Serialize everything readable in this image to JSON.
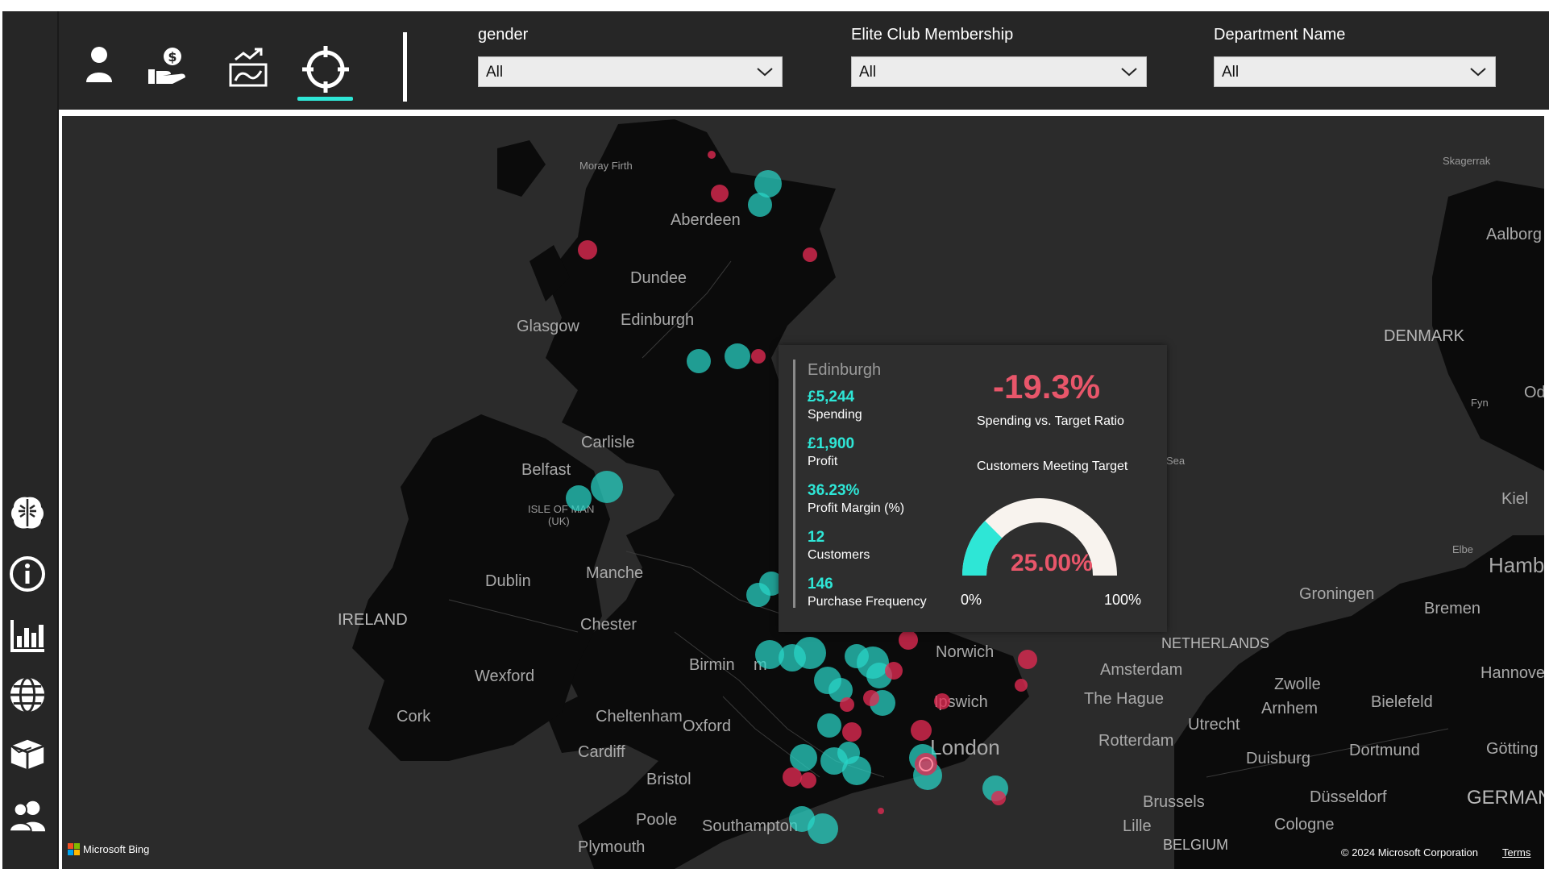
{
  "top_nav": {
    "icons": [
      {
        "name": "user-icon"
      },
      {
        "name": "hand-money-icon"
      },
      {
        "name": "trend-chart-icon"
      },
      {
        "name": "crosshair-target-icon",
        "active": true
      }
    ]
  },
  "filters": {
    "gender": {
      "label": "gender",
      "value": "All"
    },
    "elite_club": {
      "label": "Elite Club Membership",
      "value": "All"
    },
    "department": {
      "label": "Department Name",
      "value": "All"
    }
  },
  "side_nav": [
    {
      "name": "brain-icon"
    },
    {
      "name": "info-icon"
    },
    {
      "name": "bar-chart-icon"
    },
    {
      "name": "globe-icon"
    },
    {
      "name": "box-icon"
    },
    {
      "name": "users-icon"
    }
  ],
  "map": {
    "labels": {
      "moray_firth": "Moray Firth",
      "aberdeen": "Aberdeen",
      "dundee": "Dundee",
      "glasgow": "Glasgow",
      "edinburgh": "Edinburgh",
      "carlisle": "Carlisle",
      "belfast": "Belfast",
      "isle_of_man": "ISLE OF MAN",
      "isle_of_man_uk": "(UK)",
      "dublin": "Dublin",
      "ireland": "IRELAND",
      "manchester": "Manche",
      "chester": "Chester",
      "wexford": "Wexford",
      "cork": "Cork",
      "birmingham": "Birmin",
      "birmingham_tail": "m",
      "norwich": "Norwich",
      "cheltenham": "Cheltenham",
      "oxford": "Oxford",
      "ipswich": "Ipswich",
      "cardiff": "Cardiff",
      "bristol": "Bristol",
      "london": "London",
      "poole": "Poole",
      "southampton": "Southampton",
      "plymouth": "Plymouth",
      "skagerrak": "Skagerrak",
      "aalborg": "Aalborg",
      "denmark": "DENMARK",
      "fyn": "Fyn",
      "odense": "Ode",
      "sea": "Sea",
      "kiel": "Kiel",
      "elbe": "Elbe",
      "hamburg": "Hamb",
      "groningen": "Groningen",
      "bremen": "Bremen",
      "netherlands": "NETHERLANDS",
      "amsterdam": "Amsterdam",
      "zwolle": "Zwolle",
      "hannover": "Hannove",
      "the_hague": "The Hague",
      "arnhem": "Arnhem",
      "bielefeld": "Bielefeld",
      "utrecht": "Utrecht",
      "rotterdam": "Rotterdam",
      "duisburg": "Duisburg",
      "dortmund": "Dortmund",
      "gottingen": "Götting",
      "dusseldorf": "Düsseldorf",
      "germany": "GERMANY",
      "brussels": "Brussels",
      "lille": "Lille",
      "cologne": "Cologne",
      "belgium": "BELGIUM"
    },
    "attribution": {
      "bing": "Microsoft Bing",
      "copyright": "© 2024 Microsoft Corporation",
      "terms": "Terms"
    }
  },
  "tooltip": {
    "city": "Edinburgh",
    "spending_value": "£5,244",
    "spending_label": "Spending",
    "profit_value": "£1,900",
    "profit_label": "Profit",
    "margin_value": "36.23%",
    "margin_label": "Profit Margin (%)",
    "customers_value": "12",
    "customers_label": "Customers",
    "frequency_value": "146",
    "frequency_label": "Purchase Frequency",
    "ratio_value": "-19.3%",
    "ratio_label": "Spending vs. Target Ratio",
    "gauge_title": "Customers Meeting Target",
    "gauge_value": "25.00%",
    "gauge_fraction": 0.25,
    "gauge_min": "0%",
    "gauge_max": "100%"
  },
  "colors": {
    "teal": "#2ee6d6",
    "red": "#e12a52",
    "ratio_red": "#e8566a",
    "gauge_track": "#f8f3ee"
  }
}
